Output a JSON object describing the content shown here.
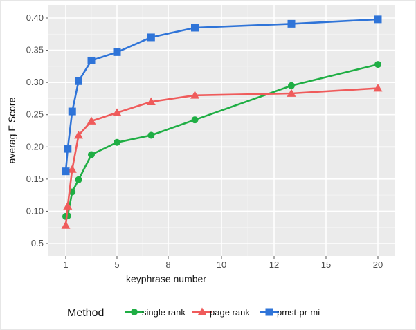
{
  "chart_data": {
    "type": "line",
    "xlabel": "keyphrase number",
    "ylabel": "averag F Score",
    "x_tick_labels": [
      "1",
      "5",
      "8",
      "10",
      "12",
      "15",
      "20"
    ],
    "y_tick_labels": [
      "0.5",
      "0.10",
      "0.15",
      "0.20",
      "0.25",
      "0.30",
      "0.35",
      "0.40"
    ],
    "grid": true,
    "legend": {
      "title": "Method",
      "position": "bottom"
    },
    "series": [
      {
        "name": "single rank",
        "color": "#1fae44",
        "marker": "circle",
        "points": [
          [
            1,
            0.092
          ],
          [
            1.15,
            0.093
          ],
          [
            1.5,
            0.13
          ],
          [
            2,
            0.149
          ],
          [
            3,
            0.188
          ],
          [
            5,
            0.207
          ],
          [
            7,
            0.218
          ],
          [
            9,
            0.242
          ],
          [
            13,
            0.295
          ],
          [
            20,
            0.328
          ]
        ]
      },
      {
        "name": "page rank",
        "color": "#ef5b5b",
        "marker": "triangle",
        "points": [
          [
            1,
            0.078
          ],
          [
            1.15,
            0.108
          ],
          [
            1.5,
            0.165
          ],
          [
            2,
            0.218
          ],
          [
            3,
            0.24
          ],
          [
            5,
            0.253
          ],
          [
            7,
            0.27
          ],
          [
            9,
            0.28
          ],
          [
            13,
            0.283
          ],
          [
            20,
            0.291
          ]
        ]
      },
      {
        "name": "pmst-pr-mi",
        "color": "#2f74d8",
        "marker": "square",
        "points": [
          [
            1,
            0.162
          ],
          [
            1.15,
            0.197
          ],
          [
            1.5,
            0.255
          ],
          [
            2,
            0.302
          ],
          [
            3,
            0.334
          ],
          [
            5,
            0.347
          ],
          [
            7,
            0.37
          ],
          [
            9,
            0.385
          ],
          [
            13,
            0.391
          ],
          [
            20,
            0.398
          ]
        ]
      }
    ]
  }
}
